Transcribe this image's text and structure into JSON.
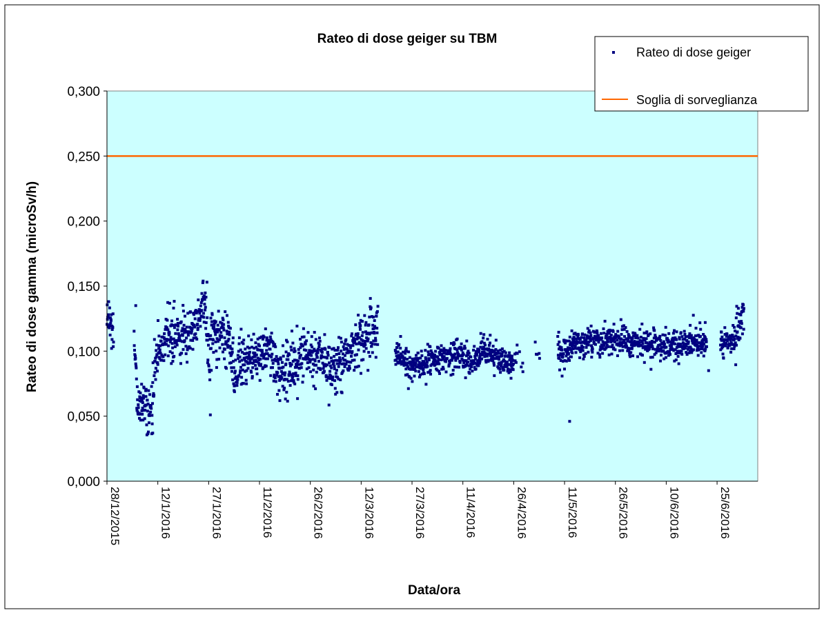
{
  "chart_data": {
    "type": "scatter",
    "title": "Rateo di dose geiger su TBM",
    "xlabel": "Data/ora",
    "ylabel": "Rateo di dose gamma (microSv/h)",
    "ylim": [
      0,
      0.3
    ],
    "xlim": [
      "2015-12-28",
      "2016-07-07"
    ],
    "plot_background": "#ccffff",
    "grid": false,
    "legend_position": "top-right",
    "y_ticks": [
      "0,000",
      "0,050",
      "0,100",
      "0,150",
      "0,200",
      "0,250",
      "0,300"
    ],
    "x_ticks": [
      "28/12/2015",
      "12/1/2016",
      "27/1/2016",
      "11/2/2016",
      "26/2/2016",
      "12/3/2016",
      "27/3/2016",
      "11/4/2016",
      "26/4/2016",
      "11/5/2016",
      "26/5/2016",
      "10/6/2016",
      "25/6/2016"
    ],
    "series": [
      {
        "name": "Rateo di dose geiger",
        "kind": "scatter",
        "color": "#000080",
        "trend": [
          [
            "2015-12-28",
            0.125
          ],
          [
            "2015-12-29",
            0.115
          ],
          [
            "2016-01-05",
            0.12
          ],
          [
            "2016-01-06",
            0.06
          ],
          [
            "2016-01-09",
            0.055
          ],
          [
            "2016-01-10",
            0.052
          ],
          [
            "2016-01-11",
            0.085
          ],
          [
            "2016-01-13",
            0.108
          ],
          [
            "2016-01-20",
            0.112
          ],
          [
            "2016-01-24",
            0.125
          ],
          [
            "2016-01-26",
            0.135
          ],
          [
            "2016-01-27",
            0.09
          ],
          [
            "2016-01-28",
            0.115
          ],
          [
            "2016-02-02",
            0.11
          ],
          [
            "2016-02-04",
            0.075
          ],
          [
            "2016-02-05",
            0.09
          ],
          [
            "2016-02-10",
            0.095
          ],
          [
            "2016-02-14",
            0.1
          ],
          [
            "2016-02-17",
            0.082
          ],
          [
            "2016-02-21",
            0.088
          ],
          [
            "2016-02-24",
            0.095
          ],
          [
            "2016-02-28",
            0.1
          ],
          [
            "2016-03-03",
            0.085
          ],
          [
            "2016-03-07",
            0.095
          ],
          [
            "2016-03-10",
            0.105
          ],
          [
            "2016-03-15",
            0.115
          ],
          [
            "2016-03-16",
            0.118
          ],
          [
            "2016-03-22",
            0.1
          ],
          [
            "2016-03-26",
            0.088
          ],
          [
            "2016-04-01",
            0.092
          ],
          [
            "2016-04-06",
            0.095
          ],
          [
            "2016-04-10",
            0.098
          ],
          [
            "2016-04-13",
            0.09
          ],
          [
            "2016-04-17",
            0.1
          ],
          [
            "2016-04-22",
            0.093
          ],
          [
            "2016-04-26",
            0.092
          ],
          [
            "2016-04-27",
            0.098
          ],
          [
            "2016-04-28",
            0.1
          ],
          [
            "2016-05-09",
            0.1
          ],
          [
            "2016-05-10",
            0.098
          ],
          [
            "2016-05-14",
            0.105
          ],
          [
            "2016-05-20",
            0.108
          ],
          [
            "2016-05-26",
            0.108
          ],
          [
            "2016-06-02",
            0.106
          ],
          [
            "2016-06-10",
            0.104
          ],
          [
            "2016-06-13",
            0.103
          ],
          [
            "2016-06-17",
            0.105
          ],
          [
            "2016-06-20",
            0.106
          ],
          [
            "2016-06-24",
            0.105
          ],
          [
            "2016-06-26",
            0.105
          ],
          [
            "2016-06-30",
            0.11
          ],
          [
            "2016-07-01",
            0.118
          ],
          [
            "2016-07-02",
            0.12
          ]
        ],
        "gaps": [
          [
            "2015-12-30",
            "2016-01-04"
          ],
          [
            "2016-03-17",
            "2016-03-21"
          ],
          [
            "2016-04-29",
            "2016-05-01"
          ],
          [
            "2016-05-04",
            "2016-05-08"
          ],
          [
            "2016-06-22",
            "2016-06-25"
          ]
        ],
        "sparse_ranges": [
          [
            "2016-04-26",
            "2016-05-08"
          ]
        ],
        "outliers": [
          [
            "2015-12-28",
            0.138
          ],
          [
            "2016-01-05",
            0.135
          ],
          [
            "2016-01-10",
            0.037
          ],
          [
            "2016-01-27",
            0.051
          ],
          [
            "2016-01-26",
            0.153
          ],
          [
            "2016-05-12",
            0.046
          ],
          [
            "2016-06-21",
            0.122
          ],
          [
            "2016-06-22",
            0.085
          ],
          [
            "2016-06-05",
            0.086
          ]
        ]
      },
      {
        "name": "Soglia di sorveglianza",
        "kind": "line",
        "color": "#ff6600",
        "value": 0.25
      }
    ]
  }
}
